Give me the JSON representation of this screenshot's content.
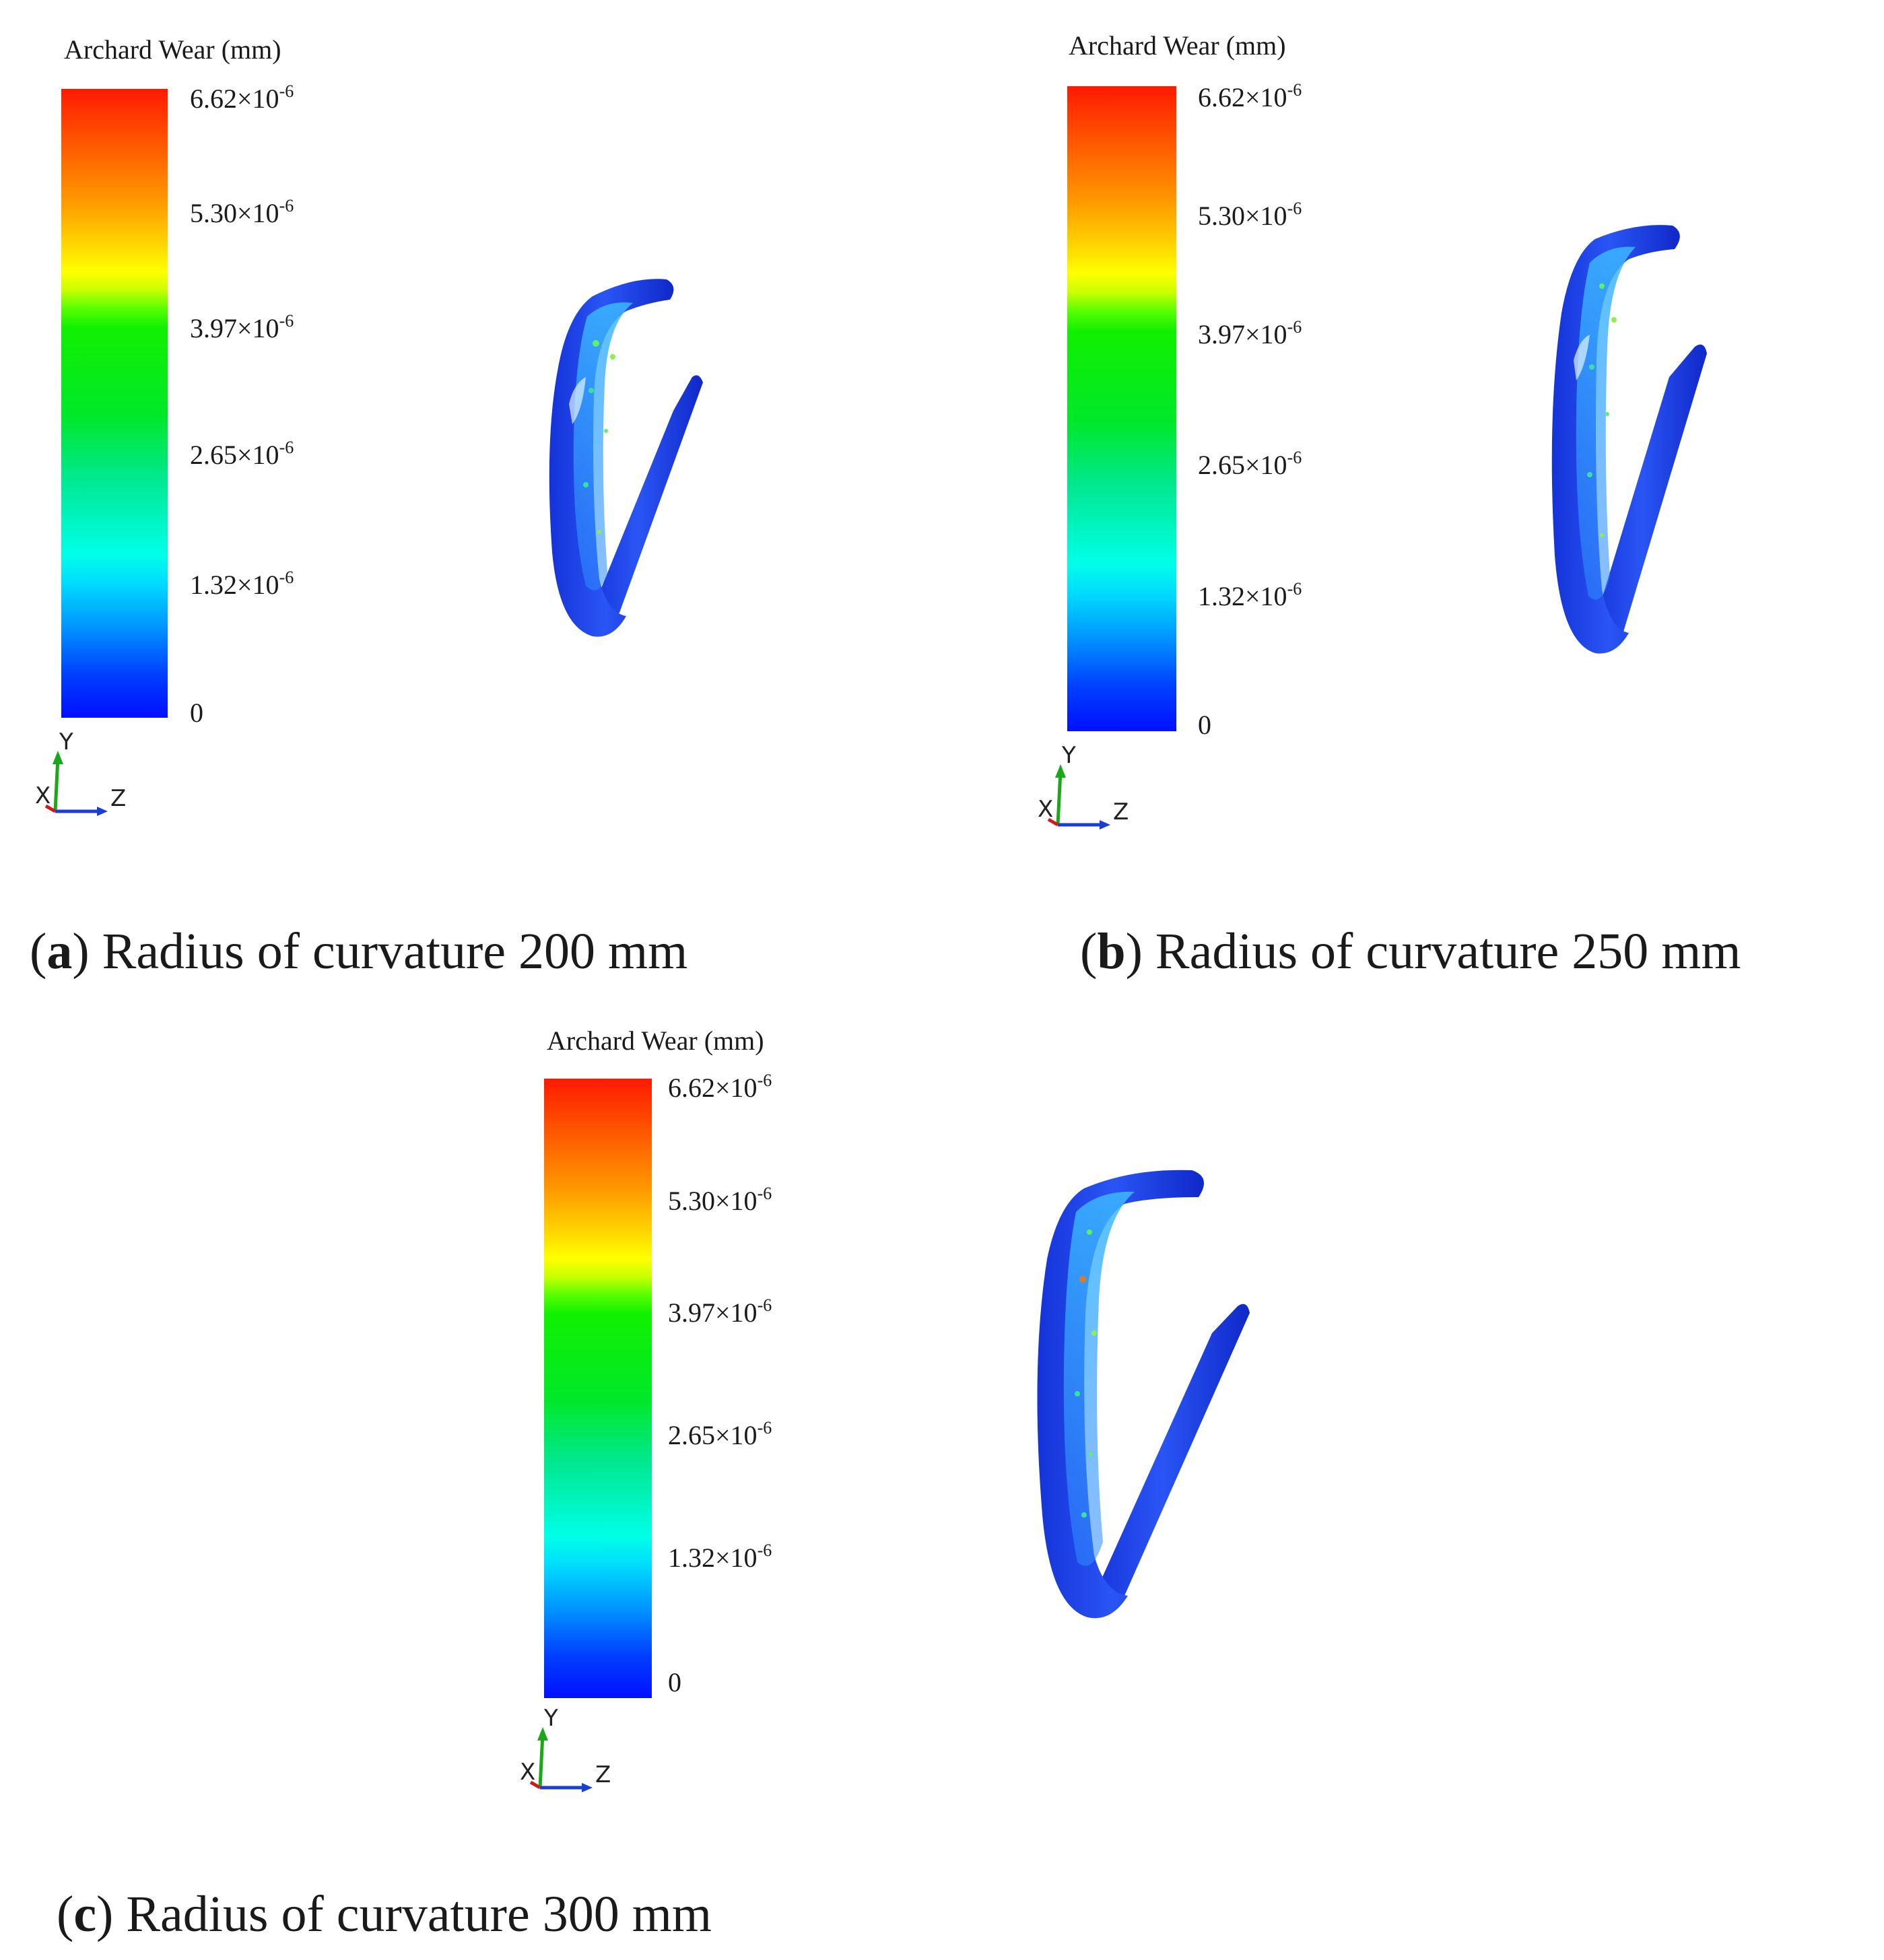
{
  "panels": [
    {
      "letter": "a",
      "caption": "Radius of curvature 200 mm",
      "legend_title": "Archard Wear (mm)",
      "ticks": [
        "6.62×10",
        "5.30×10",
        "3.97×10",
        "2.65×10",
        "1.32×10",
        "0"
      ],
      "exponent": "-6",
      "triad": {
        "x": "X",
        "y": "Y",
        "z": "Z"
      }
    },
    {
      "letter": "b",
      "caption": "Radius of curvature 250 mm",
      "legend_title": "Archard Wear (mm)",
      "ticks": [
        "6.62×10",
        "5.30×10",
        "3.97×10",
        "2.65×10",
        "1.32×10",
        "0"
      ],
      "exponent": "-6",
      "triad": {
        "x": "X",
        "y": "Y",
        "z": "Z"
      }
    },
    {
      "letter": "c",
      "caption": "Radius of curvature 300 mm",
      "legend_title": "Archard Wear (mm)",
      "ticks": [
        "6.62×10",
        "5.30×10",
        "3.97×10",
        "2.65×10",
        "1.32×10",
        "0"
      ],
      "exponent": "-6",
      "triad": {
        "x": "X",
        "y": "Y",
        "z": "Z"
      }
    }
  ],
  "colors": {
    "model_base": "#1f3fe8",
    "wear_highlight": "#39d2ff",
    "axis_y": "#1aa81a",
    "axis_z": "#1a3fd0",
    "axis_x": "#d01a1a"
  }
}
